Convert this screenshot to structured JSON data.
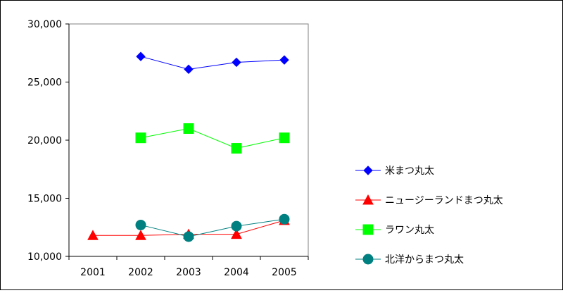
{
  "chart_data": {
    "type": "line",
    "categories": [
      "2001",
      "2002",
      "2003",
      "2004",
      "2005"
    ],
    "ylim": [
      10000,
      30000
    ],
    "yticks": [
      10000,
      15000,
      20000,
      25000,
      30000
    ],
    "ytick_labels": [
      "10,000",
      "15,000",
      "20,000",
      "25,000",
      "30,000"
    ],
    "plot_background": "#ffffff",
    "plot_border_color": "#808080",
    "grid": false,
    "legend_position": "right",
    "series": [
      {
        "name": "米まつ丸太",
        "values": [
          null,
          27200,
          26100,
          26700,
          26900
        ],
        "color": "#0000ff",
        "marker": "diamond"
      },
      {
        "name": "ニュージーランドまつ丸太",
        "values": [
          11800,
          11800,
          11900,
          11900,
          13100
        ],
        "color": "#ff0000",
        "marker": "triangle"
      },
      {
        "name": "ラワン丸太",
        "values": [
          null,
          20200,
          21000,
          19300,
          20200
        ],
        "color": "#00ff00",
        "marker": "square"
      },
      {
        "name": "北洋からまつ丸太",
        "values": [
          null,
          12700,
          11700,
          12600,
          13200
        ],
        "color": "#008080",
        "marker": "circle"
      }
    ]
  }
}
